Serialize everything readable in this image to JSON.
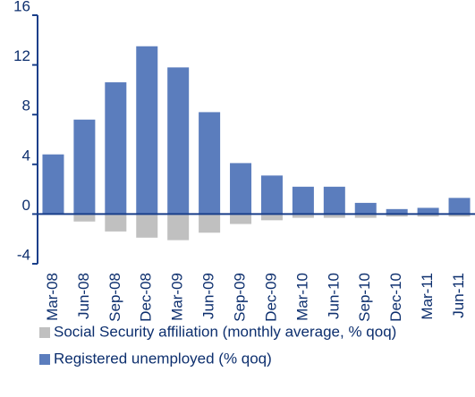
{
  "chart_data": {
    "type": "bar",
    "categories": [
      "Mar-08",
      "Jun-08",
      "Sep-08",
      "Dec-08",
      "Mar-09",
      "Jun-09",
      "Sep-09",
      "Dec-09",
      "Mar-10",
      "Jun-10",
      "Sep-10",
      "Dec-10",
      "Mar-11",
      "Jun-11"
    ],
    "series": [
      {
        "name": "Social Security affiliation (monthly average, % qoq)",
        "color": "#c0c0c0",
        "values": [
          0,
          -0.6,
          -1.4,
          -1.9,
          -2.1,
          -1.5,
          -0.8,
          -0.5,
          -0.3,
          -0.3,
          -0.3,
          -0.2,
          -0.2,
          -0.2
        ]
      },
      {
        "name": "Registered unemployed (% qoq)",
        "color": "#5b7dbd",
        "values": [
          4.8,
          7.6,
          10.6,
          13.5,
          11.8,
          8.2,
          4.1,
          3.1,
          2.2,
          2.2,
          0.9,
          0.4,
          0.5,
          1.3
        ]
      }
    ],
    "ylim": [
      -4,
      16
    ],
    "yticks": [
      -4,
      0,
      4,
      8,
      12,
      16
    ]
  }
}
